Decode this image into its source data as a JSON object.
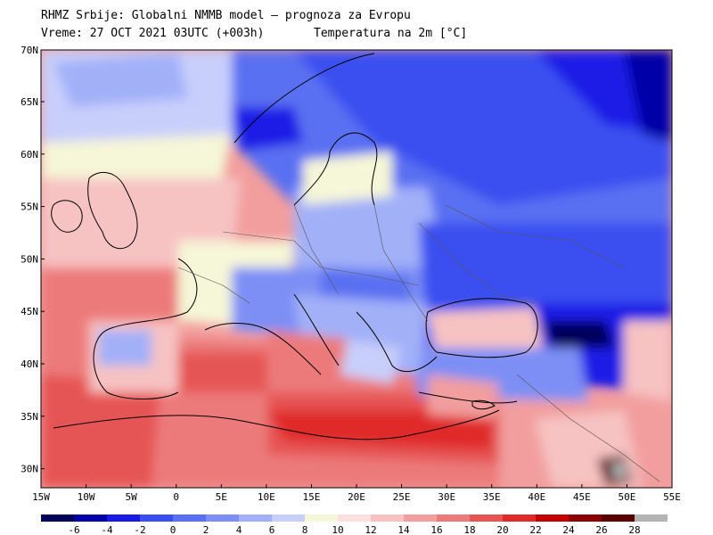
{
  "header": {
    "line1": "RHMZ Srbije: Globalni NMMB model — prognoza za Evropu",
    "line2": "Vreme: 27 OCT 2021 03UTC (+003h)",
    "line3": "Temperatura na 2m [°C]"
  },
  "map": {
    "lon_labels": [
      "15W",
      "10W",
      "5W",
      "0",
      "5E",
      "10E",
      "15E",
      "20E",
      "25E",
      "30E",
      "35E",
      "40E",
      "45E",
      "50E",
      "55E"
    ],
    "lat_labels": [
      "70N",
      "65N",
      "60N",
      "55N",
      "50N",
      "45N",
      "40N",
      "35N",
      "30N"
    ]
  },
  "legend": {
    "ticks": [
      "-6",
      "-4",
      "-2",
      "0",
      "2",
      "4",
      "6",
      "8",
      "10",
      "12",
      "14",
      "16",
      "18",
      "20",
      "22",
      "24",
      "26",
      "28"
    ],
    "colors": [
      "#00005a",
      "#0000a8",
      "#1a1ae6",
      "#3a4ff0",
      "#5a6ff2",
      "#7d8ff5",
      "#a2b0f8",
      "#c8cffb",
      "#f6f6d8",
      "#fbe0e0",
      "#f7c2c2",
      "#f29e9e",
      "#ec7a7a",
      "#e65454",
      "#e02b2b",
      "#c40000",
      "#8c0000",
      "#5a0000",
      "#b4b4b4"
    ]
  }
}
